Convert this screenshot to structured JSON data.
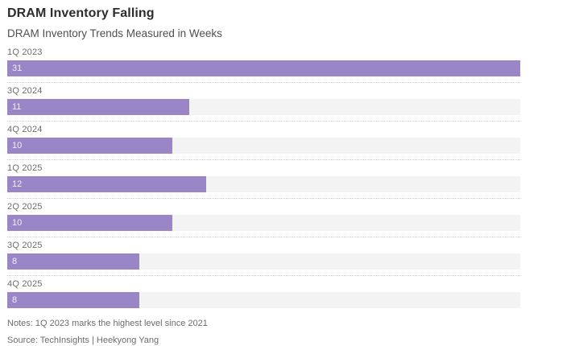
{
  "header": {
    "title": "DRAM Inventory Falling",
    "subtitle": "DRAM Inventory Trends Measured in Weeks"
  },
  "footer": {
    "notes": "Notes: 1Q 2023 marks the highest level since 2021",
    "source": "Source: TechInsights | Heekyong Yang"
  },
  "chart_data": {
    "type": "bar",
    "orientation": "horizontal",
    "title": "DRAM Inventory Falling",
    "subtitle": "DRAM Inventory Trends Measured in Weeks",
    "categories": [
      "1Q 2023",
      "3Q 2024",
      "4Q 2024",
      "1Q 2025",
      "2Q 2025",
      "3Q 2025",
      "4Q 2025"
    ],
    "values": [
      31,
      11,
      10,
      12,
      10,
      8,
      8
    ],
    "xlabel": "",
    "ylabel": "",
    "xlim": [
      0,
      31
    ],
    "value_labels_inside_bar": true,
    "grid": false,
    "legend": false,
    "colors": {
      "bar_fill": "#9a85c6",
      "bar_track": "#f3f3f3",
      "separator": "#d2d2d2",
      "title_text": "#2d2d2d",
      "label_text": "#6c6c6c",
      "value_text": "#ffffff"
    },
    "notes": "Notes: 1Q 2023 marks the highest level since 2021",
    "source": "Source: TechInsights | Heekyong Yang"
  }
}
